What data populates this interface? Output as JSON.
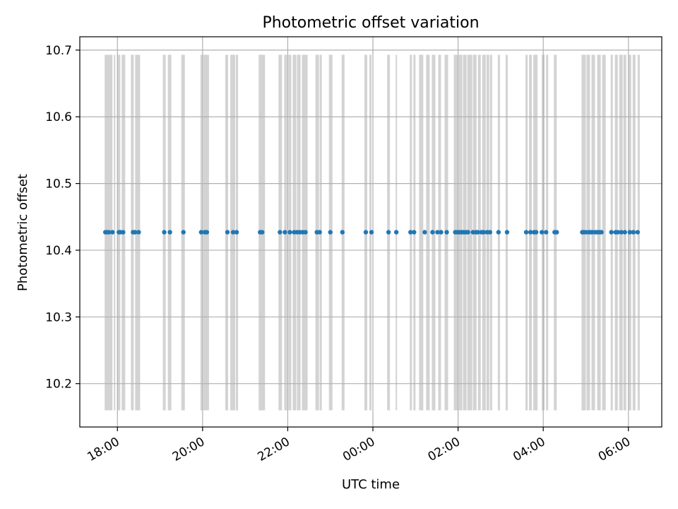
{
  "chart_data": {
    "type": "scatter",
    "title": "Photometric offset variation",
    "xlabel": "UTC time",
    "ylabel": "Photometric offset",
    "x_axis_kind": "time",
    "x_ticks": [
      "18:00",
      "20:00",
      "22:00",
      "00:00",
      "02:00",
      "04:00",
      "06:00"
    ],
    "y_ticks": [
      "10.2",
      "10.3",
      "10.4",
      "10.5",
      "10.6",
      "10.7"
    ],
    "ylim": [
      10.135,
      10.72
    ],
    "xlim": [
      "17:07",
      "06:47"
    ],
    "grid": true,
    "colors": {
      "points": "#1f77b4",
      "bands": "#d3d3d3",
      "grid": "#b0b0b0",
      "frame": "#000000"
    },
    "band_ylim": [
      10.16,
      10.693
    ],
    "bands": [
      [
        "17:42",
        "17:53"
      ],
      [
        "17:55",
        "17:57"
      ],
      [
        "18:00",
        "18:04"
      ],
      [
        "18:06",
        "18:11"
      ],
      [
        "18:19",
        "18:23"
      ],
      [
        "18:25",
        "18:32"
      ],
      [
        "19:04",
        "19:08"
      ],
      [
        "19:11",
        "19:16"
      ],
      [
        "19:30",
        "19:35"
      ],
      [
        "19:57",
        "20:00"
      ],
      [
        "20:01",
        "20:09"
      ],
      [
        "20:32",
        "20:36"
      ],
      [
        "20:39",
        "20:46"
      ],
      [
        "20:47",
        "20:50"
      ],
      [
        "21:19",
        "21:28"
      ],
      [
        "21:47",
        "21:52"
      ],
      [
        "21:55",
        "21:59"
      ],
      [
        "22:01",
        "22:05"
      ],
      [
        "22:07",
        "22:12"
      ],
      [
        "22:13",
        "22:18"
      ],
      [
        "22:20",
        "22:28"
      ],
      [
        "22:39",
        "22:44"
      ],
      [
        "22:45",
        "22:48"
      ],
      [
        "22:58",
        "23:03"
      ],
      [
        "23:16",
        "23:20"
      ],
      [
        "23:48",
        "23:52"
      ],
      [
        "23:55",
        "23:58"
      ],
      [
        "00:20",
        "00:24"
      ],
      [
        "00:32",
        "00:34"
      ],
      [
        "00:52",
        "00:55"
      ],
      [
        "00:57",
        "01:00"
      ],
      [
        "01:05",
        "01:11"
      ],
      [
        "01:15",
        "01:20"
      ],
      [
        "01:23",
        "01:28"
      ],
      [
        "01:32",
        "01:36"
      ],
      [
        "01:41",
        "01:46"
      ],
      [
        "01:54",
        "02:00"
      ],
      [
        "02:01",
        "02:06"
      ],
      [
        "02:07",
        "02:12"
      ],
      [
        "02:13",
        "02:20"
      ],
      [
        "02:21",
        "02:26"
      ],
      [
        "02:28",
        "02:32"
      ],
      [
        "02:34",
        "02:39"
      ],
      [
        "02:40",
        "02:44"
      ],
      [
        "02:45",
        "02:48"
      ],
      [
        "02:56",
        "02:59"
      ],
      [
        "03:07",
        "03:10"
      ],
      [
        "03:35",
        "03:38"
      ],
      [
        "03:40",
        "03:44"
      ],
      [
        "03:46",
        "03:52"
      ],
      [
        "03:58",
        "04:02"
      ],
      [
        "04:04",
        "04:07"
      ],
      [
        "04:15",
        "04:19"
      ],
      [
        "04:54",
        "05:00"
      ],
      [
        "05:01",
        "05:06"
      ],
      [
        "05:08",
        "05:13"
      ],
      [
        "05:16",
        "05:21"
      ],
      [
        "05:23",
        "05:28"
      ],
      [
        "05:35",
        "05:38"
      ],
      [
        "05:41",
        "05:45"
      ],
      [
        "05:47",
        "05:52"
      ],
      [
        "05:53",
        "05:57"
      ],
      [
        "06:00",
        "06:04"
      ],
      [
        "06:06",
        "06:10"
      ],
      [
        "06:13",
        "06:16"
      ]
    ],
    "points": [
      {
        "x": "17:43",
        "y": 10.427
      },
      {
        "x": "17:45",
        "y": 10.427
      },
      {
        "x": "17:48",
        "y": 10.427
      },
      {
        "x": "17:53",
        "y": 10.427
      },
      {
        "x": "18:02",
        "y": 10.427
      },
      {
        "x": "18:04",
        "y": 10.427
      },
      {
        "x": "18:08",
        "y": 10.427
      },
      {
        "x": "18:22",
        "y": 10.427
      },
      {
        "x": "18:25",
        "y": 10.427
      },
      {
        "x": "18:30",
        "y": 10.427
      },
      {
        "x": "19:06",
        "y": 10.427
      },
      {
        "x": "19:14",
        "y": 10.427
      },
      {
        "x": "19:33",
        "y": 10.427
      },
      {
        "x": "19:58",
        "y": 10.427
      },
      {
        "x": "20:03",
        "y": 10.427
      },
      {
        "x": "20:06",
        "y": 10.427
      },
      {
        "x": "20:35",
        "y": 10.427
      },
      {
        "x": "20:43",
        "y": 10.427
      },
      {
        "x": "20:48",
        "y": 10.427
      },
      {
        "x": "21:21",
        "y": 10.427
      },
      {
        "x": "21:24",
        "y": 10.427
      },
      {
        "x": "21:49",
        "y": 10.427
      },
      {
        "x": "21:56",
        "y": 10.427
      },
      {
        "x": "22:03",
        "y": 10.427
      },
      {
        "x": "22:09",
        "y": 10.427
      },
      {
        "x": "22:13",
        "y": 10.427
      },
      {
        "x": "22:17",
        "y": 10.427
      },
      {
        "x": "22:21",
        "y": 10.427
      },
      {
        "x": "22:25",
        "y": 10.427
      },
      {
        "x": "22:41",
        "y": 10.427
      },
      {
        "x": "22:45",
        "y": 10.427
      },
      {
        "x": "23:00",
        "y": 10.427
      },
      {
        "x": "23:17",
        "y": 10.427
      },
      {
        "x": "23:50",
        "y": 10.427
      },
      {
        "x": "23:58",
        "y": 10.427
      },
      {
        "x": "00:22",
        "y": 10.427
      },
      {
        "x": "00:33",
        "y": 10.427
      },
      {
        "x": "00:53",
        "y": 10.427
      },
      {
        "x": "00:58",
        "y": 10.427
      },
      {
        "x": "01:13",
        "y": 10.427
      },
      {
        "x": "01:24",
        "y": 10.427
      },
      {
        "x": "01:31",
        "y": 10.427
      },
      {
        "x": "01:36",
        "y": 10.427
      },
      {
        "x": "01:44",
        "y": 10.427
      },
      {
        "x": "01:56",
        "y": 10.427
      },
      {
        "x": "01:59",
        "y": 10.427
      },
      {
        "x": "02:02",
        "y": 10.427
      },
      {
        "x": "02:05",
        "y": 10.427
      },
      {
        "x": "02:08",
        "y": 10.427
      },
      {
        "x": "02:11",
        "y": 10.427
      },
      {
        "x": "02:14",
        "y": 10.427
      },
      {
        "x": "02:21",
        "y": 10.427
      },
      {
        "x": "02:25",
        "y": 10.427
      },
      {
        "x": "02:28",
        "y": 10.427
      },
      {
        "x": "02:33",
        "y": 10.427
      },
      {
        "x": "02:36",
        "y": 10.427
      },
      {
        "x": "02:41",
        "y": 10.427
      },
      {
        "x": "02:45",
        "y": 10.427
      },
      {
        "x": "02:57",
        "y": 10.427
      },
      {
        "x": "03:09",
        "y": 10.427
      },
      {
        "x": "03:36",
        "y": 10.427
      },
      {
        "x": "03:42",
        "y": 10.427
      },
      {
        "x": "03:47",
        "y": 10.427
      },
      {
        "x": "03:50",
        "y": 10.427
      },
      {
        "x": "03:58",
        "y": 10.427
      },
      {
        "x": "04:04",
        "y": 10.427
      },
      {
        "x": "04:16",
        "y": 10.427
      },
      {
        "x": "04:19",
        "y": 10.427
      },
      {
        "x": "04:55",
        "y": 10.427
      },
      {
        "x": "04:57",
        "y": 10.427
      },
      {
        "x": "05:00",
        "y": 10.427
      },
      {
        "x": "05:04",
        "y": 10.427
      },
      {
        "x": "05:07",
        "y": 10.427
      },
      {
        "x": "05:09",
        "y": 10.427
      },
      {
        "x": "05:13",
        "y": 10.427
      },
      {
        "x": "05:16",
        "y": 10.427
      },
      {
        "x": "05:19",
        "y": 10.427
      },
      {
        "x": "05:22",
        "y": 10.427
      },
      {
        "x": "05:36",
        "y": 10.427
      },
      {
        "x": "05:42",
        "y": 10.427
      },
      {
        "x": "05:45",
        "y": 10.427
      },
      {
        "x": "05:50",
        "y": 10.427
      },
      {
        "x": "05:55",
        "y": 10.427
      },
      {
        "x": "06:02",
        "y": 10.427
      },
      {
        "x": "06:07",
        "y": 10.427
      },
      {
        "x": "06:13",
        "y": 10.427
      }
    ]
  }
}
